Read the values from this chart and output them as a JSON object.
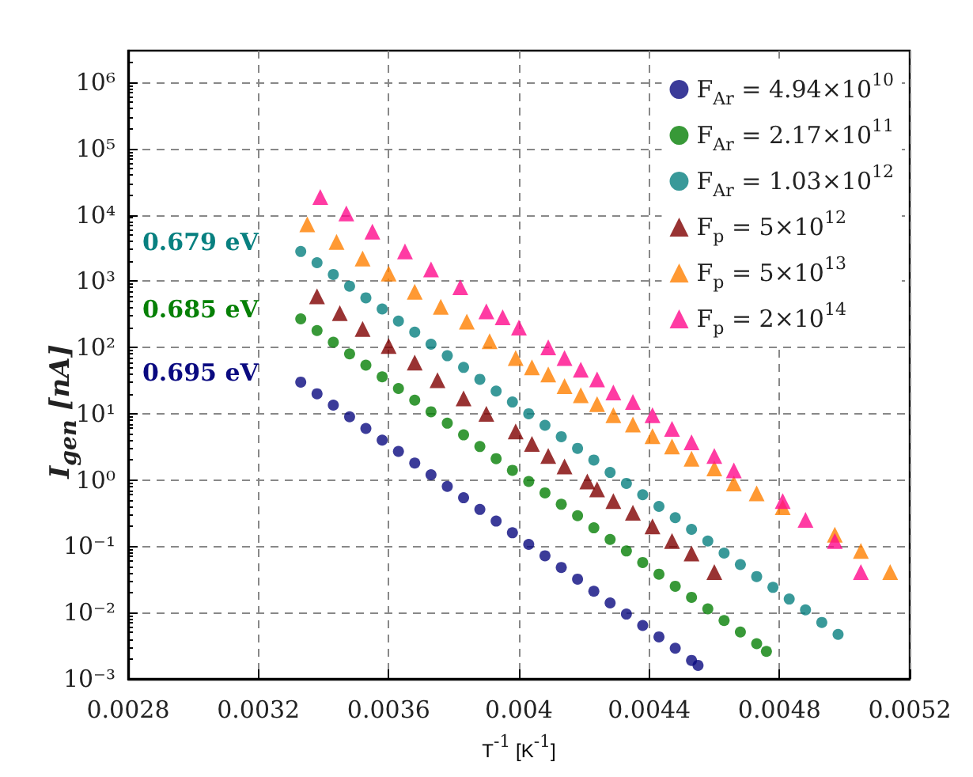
{
  "chart_data": {
    "type": "scatter",
    "xlabel": "T$^{-1}$ [K$^{-1}$]",
    "ylabel": "I$_{gen}$ [nA]",
    "log": "y",
    "grid": true,
    "legend": "top right",
    "xlim": [
      0.0028,
      0.0052
    ],
    "xticks": [
      0.0028,
      0.0032,
      0.0036,
      0.004,
      0.0044,
      0.0048,
      0.0052
    ],
    "ylim": [
      0.001,
      3000000
    ],
    "yticks": [
      {
        "value": 0.001,
        "label": "10⁻³"
      },
      {
        "value": 0.01,
        "label": "10⁻²"
      },
      {
        "value": 0.1,
        "label": "10⁻¹"
      },
      {
        "value": 1,
        "label": "10⁰"
      },
      {
        "value": 10,
        "label": "10¹"
      },
      {
        "value": 100,
        "label": "10²"
      },
      {
        "value": 1000,
        "label": "10³"
      },
      {
        "value": 10000,
        "label": "10⁴"
      },
      {
        "value": 100000,
        "label": "10⁵"
      },
      {
        "value": 1000000,
        "label": "10⁶"
      }
    ],
    "annotations": [
      "0.679 eV",
      "0.685 eV",
      "0.695 eV"
    ],
    "series": [
      {
        "name": "F$_{Ar}$ = 4.94×10$^{10}$",
        "color": "#0a0a80",
        "marker": "circle",
        "x": [
          0.00333,
          0.00338,
          0.00343,
          0.00348,
          0.00353,
          0.00358,
          0.00363,
          0.00368,
          0.00373,
          0.00378,
          0.00383,
          0.00388,
          0.00393,
          0.00398,
          0.00403,
          0.00408,
          0.00413,
          0.00418,
          0.00423,
          0.00428,
          0.00433,
          0.00438,
          0.00443,
          0.00448,
          0.00453,
          0.00455
        ],
        "values": [
          30,
          20,
          13.5,
          9,
          6,
          4,
          2.7,
          1.8,
          1.2,
          0.8,
          0.54,
          0.36,
          0.24,
          0.16,
          0.107,
          0.072,
          0.048,
          0.032,
          0.021,
          0.014,
          0.0095,
          0.0064,
          0.0043,
          0.0029,
          0.0019,
          0.0016
        ]
      },
      {
        "name": "F$_{Ar}$ = 2.17×10$^{11}$",
        "color": "#068006",
        "marker": "circle",
        "x": [
          0.00333,
          0.00338,
          0.00343,
          0.00348,
          0.00353,
          0.00358,
          0.00363,
          0.00368,
          0.00373,
          0.00378,
          0.00383,
          0.00388,
          0.00393,
          0.00398,
          0.00403,
          0.00408,
          0.00413,
          0.00418,
          0.00423,
          0.00428,
          0.00433,
          0.00438,
          0.00443,
          0.00448,
          0.00453,
          0.00458,
          0.00463,
          0.00468,
          0.00473,
          0.00476
        ],
        "values": [
          270,
          180,
          120,
          80,
          54,
          36,
          24,
          16,
          10.7,
          7.2,
          4.8,
          3.2,
          2.1,
          1.4,
          0.95,
          0.64,
          0.43,
          0.29,
          0.19,
          0.127,
          0.085,
          0.057,
          0.038,
          0.025,
          0.017,
          0.0114,
          0.0076,
          0.0051,
          0.0034,
          0.0026
        ]
      },
      {
        "name": "F$_{Ar}$ = 1.03×10$^{12}$",
        "color": "#088080",
        "marker": "circle",
        "x": [
          0.00333,
          0.00338,
          0.00343,
          0.00348,
          0.00353,
          0.00358,
          0.00363,
          0.00368,
          0.00373,
          0.00378,
          0.00383,
          0.00388,
          0.00393,
          0.00398,
          0.00403,
          0.00408,
          0.00413,
          0.00418,
          0.00423,
          0.00428,
          0.00433,
          0.00438,
          0.00443,
          0.00448,
          0.00453,
          0.00458,
          0.00463,
          0.00468,
          0.00473,
          0.00478,
          0.00483,
          0.00488,
          0.00493,
          0.00498
        ],
        "values": [
          2800,
          1900,
          1260,
          840,
          560,
          380,
          250,
          170,
          112,
          75,
          50,
          33,
          22,
          15,
          10,
          6.7,
          4.5,
          3,
          2,
          1.3,
          0.89,
          0.6,
          0.4,
          0.27,
          0.18,
          0.12,
          0.079,
          0.053,
          0.035,
          0.024,
          0.016,
          0.011,
          0.0071,
          0.0047
        ]
      },
      {
        "name": "F$_{p}$ = 5×10$^{12}$",
        "color": "#800000",
        "marker": "triangle",
        "x": [
          0.00338,
          0.00345,
          0.00352,
          0.0036,
          0.00368,
          0.00375,
          0.00383,
          0.0039,
          0.00399,
          0.00404,
          0.00409,
          0.00414,
          0.00421,
          0.00424,
          0.00429,
          0.00435,
          0.00441,
          0.00447,
          0.00453,
          0.0046
        ],
        "values": [
          590,
          330,
          190,
          105,
          59,
          32,
          17,
          10,
          5.4,
          3.5,
          2.3,
          1.6,
          0.95,
          0.72,
          0.48,
          0.32,
          0.2,
          0.12,
          0.078,
          0.041
        ]
      },
      {
        "name": "F$_{p}$ = 5×10$^{13}$",
        "color": "#ff8000",
        "marker": "triangle",
        "x": [
          0.00335,
          0.00344,
          0.00352,
          0.0036,
          0.00368,
          0.00376,
          0.00384,
          0.00391,
          0.00399,
          0.00404,
          0.00409,
          0.00414,
          0.00419,
          0.00424,
          0.00429,
          0.00435,
          0.00441,
          0.00447,
          0.00453,
          0.0046,
          0.00466,
          0.00473,
          0.00481,
          0.00497,
          0.00505,
          0.00514
        ],
        "values": [
          7200,
          3900,
          2200,
          1300,
          690,
          410,
          245,
          124,
          69,
          50,
          39,
          26,
          19,
          14,
          9.5,
          6.9,
          4.6,
          3.2,
          2.1,
          1.5,
          0.89,
          0.63,
          0.39,
          0.15,
          0.085,
          0.041
        ]
      },
      {
        "name": "F$_{p}$ = 2×10$^{14}$",
        "color": "#ff0a8c",
        "marker": "triangle",
        "x": [
          0.00339,
          0.00347,
          0.00355,
          0.00365,
          0.00373,
          0.00382,
          0.0039,
          0.00395,
          0.004,
          0.00409,
          0.00414,
          0.00419,
          0.00424,
          0.00429,
          0.00435,
          0.00441,
          0.00447,
          0.00453,
          0.0046,
          0.00466,
          0.00481,
          0.00488,
          0.00497,
          0.00505
        ],
        "values": [
          18600,
          10500,
          5600,
          2800,
          1500,
          810,
          350,
          285,
          200,
          100,
          69,
          46,
          33,
          21,
          15,
          9.5,
          5.9,
          3.7,
          2.3,
          1.4,
          0.48,
          0.25,
          0.12,
          0.041
        ]
      }
    ]
  }
}
